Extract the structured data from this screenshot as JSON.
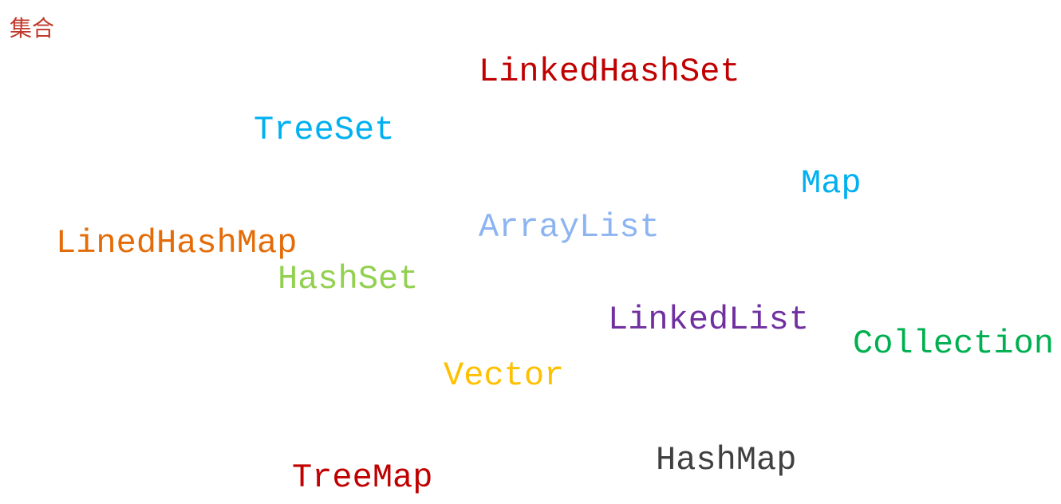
{
  "title": "集合",
  "words": [
    {
      "key": "linkedhashset",
      "text": "LinkedHashSet",
      "color": "#c00000"
    },
    {
      "key": "treeset",
      "text": "TreeSet",
      "color": "#00b0f0"
    },
    {
      "key": "map",
      "text": "Map",
      "color": "#00b0f0"
    },
    {
      "key": "arraylist",
      "text": "ArrayList",
      "color": "#8db4f2"
    },
    {
      "key": "linedhashmap",
      "text": "LinedHashMap",
      "color": "#e36c09"
    },
    {
      "key": "hashset",
      "text": "HashSet",
      "color": "#92d050"
    },
    {
      "key": "linkedlist",
      "text": "LinkedList",
      "color": "#7030a0"
    },
    {
      "key": "collection",
      "text": "Collection",
      "color": "#00b050"
    },
    {
      "key": "vector",
      "text": "Vector",
      "color": "#ffc000"
    },
    {
      "key": "hashmap",
      "text": "HashMap",
      "color": "#404040"
    },
    {
      "key": "treemap",
      "text": "TreeMap",
      "color": "#c00000"
    }
  ]
}
